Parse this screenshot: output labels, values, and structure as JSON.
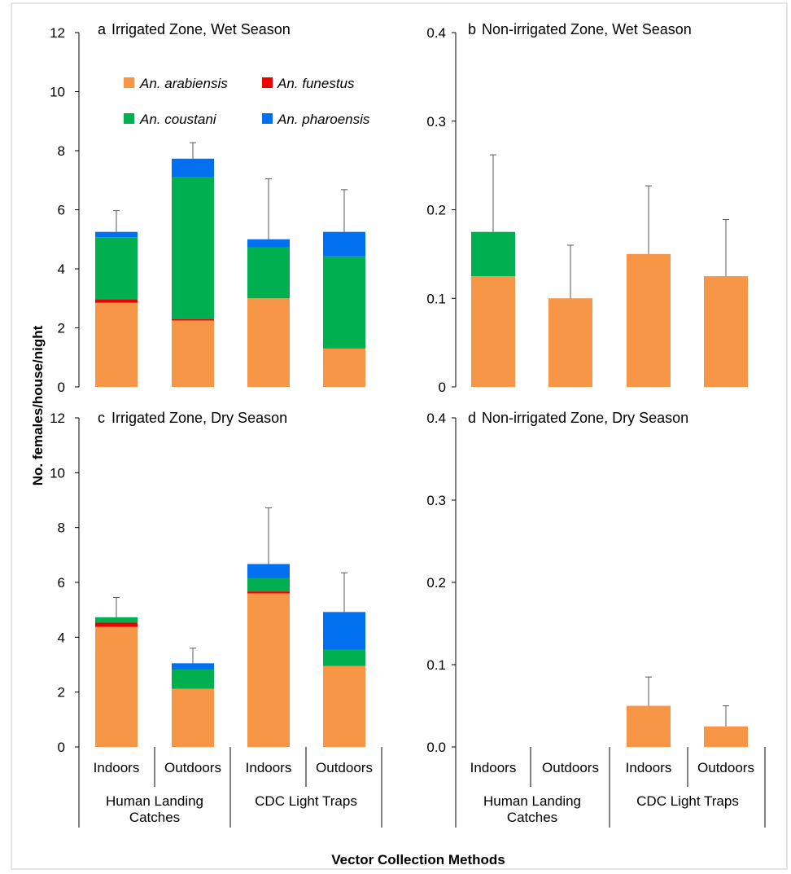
{
  "chart_data": [
    {
      "id": "a",
      "type": "bar",
      "stacked": true,
      "panel_letter": "a",
      "title": "Irrigated Zone, Wet Season",
      "ylim": [
        0,
        12
      ],
      "yticks": [
        "0",
        "2",
        "4",
        "6",
        "8",
        "10",
        "12"
      ],
      "categories": [
        "Indoors",
        "Outdoors",
        "Indoors",
        "Outdoors"
      ],
      "series": [
        {
          "name": "An. arabiensis",
          "values": [
            2.85,
            2.25,
            3.0,
            1.3
          ]
        },
        {
          "name": "An. funestus",
          "values": [
            0.12,
            0.05,
            0.0,
            0.0
          ]
        },
        {
          "name": "An. coustani",
          "values": [
            2.1,
            4.8,
            1.72,
            3.12
          ]
        },
        {
          "name": "An. pharoensis",
          "values": [
            0.18,
            0.63,
            0.28,
            0.83
          ]
        }
      ],
      "error_bar_tops": [
        5.97,
        8.27,
        7.05,
        6.68
      ]
    },
    {
      "id": "b",
      "type": "bar",
      "stacked": true,
      "panel_letter": "b",
      "title": "Non-irrigated Zone, Wet Season",
      "ylim": [
        0,
        0.4
      ],
      "yticks": [
        "0",
        "0.1",
        "0.2",
        "0.3",
        "0.4"
      ],
      "categories": [
        "Indoors",
        "Outdoors",
        "Indoors",
        "Outdoors"
      ],
      "series": [
        {
          "name": "An. arabiensis",
          "values": [
            0.125,
            0.1,
            0.15,
            0.125
          ]
        },
        {
          "name": "An. funestus",
          "values": [
            0,
            0,
            0,
            0
          ]
        },
        {
          "name": "An. coustani",
          "values": [
            0.05,
            0,
            0,
            0
          ]
        },
        {
          "name": "An. pharoensis",
          "values": [
            0,
            0,
            0,
            0
          ]
        }
      ],
      "error_bar_tops": [
        0.262,
        0.16,
        0.227,
        0.189
      ]
    },
    {
      "id": "c",
      "type": "bar",
      "stacked": true,
      "panel_letter": "c",
      "title": "Irrigated Zone, Dry Season",
      "ylim": [
        0,
        12
      ],
      "yticks": [
        "0",
        "2",
        "4",
        "6",
        "8",
        "10",
        "12"
      ],
      "categories": [
        "Indoors",
        "Outdoors",
        "Indoors",
        "Outdoors"
      ],
      "series": [
        {
          "name": "An. arabiensis",
          "values": [
            4.38,
            2.12,
            5.6,
            2.95
          ]
        },
        {
          "name": "An. funestus",
          "values": [
            0.15,
            0.0,
            0.07,
            0.0
          ]
        },
        {
          "name": "An. coustani",
          "values": [
            0.2,
            0.7,
            0.48,
            0.6
          ]
        },
        {
          "name": "An. pharoensis",
          "values": [
            0.0,
            0.23,
            0.52,
            1.37
          ]
        }
      ],
      "error_bar_tops": [
        5.45,
        3.6,
        8.72,
        6.35
      ]
    },
    {
      "id": "d",
      "type": "bar",
      "stacked": true,
      "panel_letter": "d",
      "title": "Non-irrigated Zone, Dry Season",
      "ylim": [
        0,
        0.4
      ],
      "yticks": [
        "0.0",
        "0.1",
        "0.2",
        "0.3",
        "0.4"
      ],
      "categories": [
        "Indoors",
        "Outdoors",
        "Indoors",
        "Outdoors"
      ],
      "series": [
        {
          "name": "An. arabiensis",
          "values": [
            0,
            0,
            0.05,
            0.025
          ]
        },
        {
          "name": "An. funestus",
          "values": [
            0,
            0,
            0,
            0
          ]
        },
        {
          "name": "An. coustani",
          "values": [
            0,
            0,
            0,
            0
          ]
        },
        {
          "name": "An. pharoensis",
          "values": [
            0,
            0,
            0,
            0
          ]
        }
      ],
      "error_bar_tops": [
        0,
        0,
        0.085,
        0.05
      ]
    }
  ],
  "groups": [
    {
      "line1": "Human Landing",
      "line2": "Catches"
    },
    {
      "line1": "CDC Light Traps",
      "line2": ""
    }
  ],
  "legend": [
    {
      "label": "An. arabiensis",
      "color": "#F79646"
    },
    {
      "label": "An. funestus",
      "color": "#EE0000"
    },
    {
      "label": "An. coustani",
      "color": "#00B050"
    },
    {
      "label": "An. pharoensis",
      "color": "#0070F0"
    }
  ],
  "colors": {
    "An. arabiensis": "#F79646",
    "An. funestus": "#EE0000",
    "An. coustani": "#00B050",
    "An. pharoensis": "#0070F0"
  },
  "ylabel": "No. females/house/night",
  "xlabel": "Vector Collection Methods"
}
